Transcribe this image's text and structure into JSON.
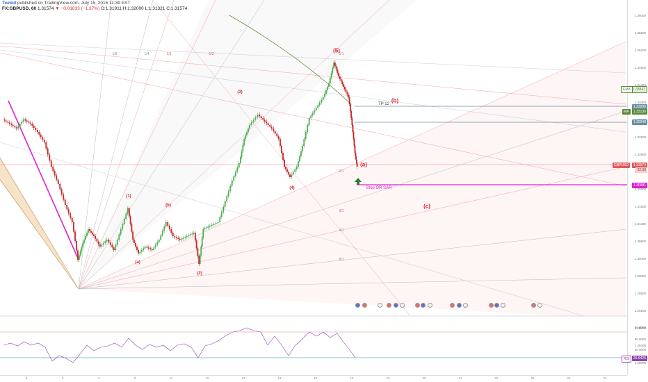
{
  "header": {
    "author": "Teekid",
    "publish_text": "published on TradingView.com, July 15, 2016 11:39 EST"
  },
  "quote": {
    "symbol": "FX:GBPUSD, 60",
    "last": "1.31574",
    "change": "▼ −0.01833 (−1.37%)",
    "open": "O:1.31911",
    "high": "H:1.32000",
    "low": "L:1.31321",
    "close": "C:1.31574"
  },
  "price_axis": {
    "ticks": [
      "1.36000",
      "1.35600",
      "1.35200",
      "1.34800",
      "1.34400",
      "1.34000",
      "1.33600",
      "1.33200",
      "1.32800",
      "1.32400",
      "1.32000",
      "1.31600",
      "1.31200",
      "1.30800",
      "1.30400",
      "1.30000",
      "1.29600",
      "1.29200",
      "1.28800",
      "1.28400",
      "1.28000"
    ]
  },
  "time_axis": {
    "ticks": [
      "5",
      "6",
      "7",
      "8",
      "11",
      "12",
      "13",
      "14",
      "15",
      "18",
      "19",
      "20",
      "21",
      "22",
      "25",
      "26",
      "27"
    ]
  },
  "markers": {
    "ema_label": "EMA",
    "ema_value": "1.33841",
    "ma_label": "MA",
    "ma_value": "1.33130",
    "upper_level": "1.33298",
    "mid_level": "1.32948",
    "symbol_tag": "GBPUSD",
    "symbol_price": "1.31574",
    "countdown": "22:30",
    "stop_level": "1.30981",
    "rsi_label": "RSI",
    "rsi_value": "26.9426"
  },
  "waves": {
    "w5": "(5)",
    "w3": "(3)",
    "w4": "(4)",
    "w1": "(1)",
    "w2": "(2)",
    "wa_small": "(a)",
    "wb_small": "(b)",
    "wa": "(a)",
    "wb": "(b)",
    "wc": "(c)"
  },
  "fan_labels": {
    "f18": "1/8",
    "f14": "1/4",
    "f13": "1/3",
    "f12": "1/2",
    "f11": "1/1",
    "f21": "2/1",
    "f31": "3/1",
    "f41": "4/1",
    "f81": "8/1"
  },
  "annotations": {
    "tp": "TP 12",
    "stop": "Stop OR SAR"
  },
  "rsi_axis": {
    "t1": "80.0000",
    "t2": "60.0000",
    "t3": "40.0000"
  },
  "colors": {
    "up_candle": "#4caf50",
    "down_candle": "#c62828",
    "wave_red": "#e0202a",
    "stop_magenta": "#e020d0",
    "rsi_purple": "#8e44ad",
    "ema_green": "#5d8a3a"
  }
}
